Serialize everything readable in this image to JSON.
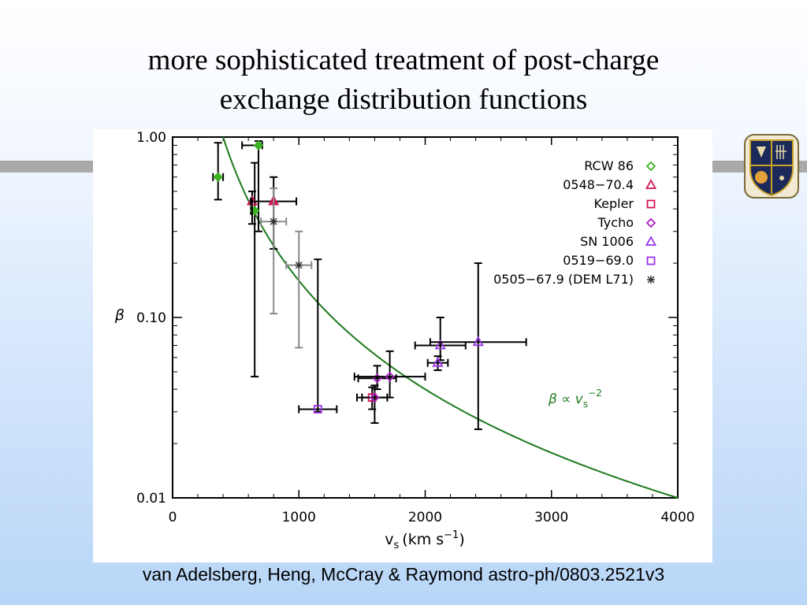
{
  "slide": {
    "title_line1": "more sophisticated treatment of post-charge",
    "title_line2": "exchange distribution functions",
    "citation": "van Adelsberg, Heng, McCray & Raymond astro-ph/0803.2521v3"
  },
  "chart_data": {
    "type": "scatter",
    "title": "",
    "xlabel_main": "v",
    "xlabel_sub": "s",
    "xlabel_units": "(km s",
    "xlabel_exp": "−1",
    "xlabel_close": ")",
    "ylabel": "β",
    "xlim": [
      0,
      4000
    ],
    "ylim": [
      0.01,
      1.0
    ],
    "y_scale": "log",
    "x_ticks": [
      0,
      1000,
      2000,
      3000,
      4000
    ],
    "x_tick_labels": [
      "0",
      "1000",
      "2000",
      "3000",
      "4000"
    ],
    "y_ticks": [
      0.01,
      0.1,
      1.0
    ],
    "y_tick_labels": [
      "0.01",
      "0.10",
      "1.00"
    ],
    "legend_position": "top-right",
    "fit_curve": {
      "label": "β ∝ v",
      "label_sub": "s",
      "label_exp": "−2",
      "color": "#1e7a1e",
      "x_range": [
        400,
        4000
      ],
      "anchor_x": 4000,
      "anchor_y": 0.01,
      "exponent": -2
    },
    "series": [
      {
        "name": "RCW 86",
        "marker": "diamond",
        "color": "#3cb324",
        "points": [
          {
            "x": 360,
            "y": 0.6,
            "xerr": [
              40,
              40
            ],
            "yerr": [
              0.45,
              0.93
            ],
            "filled": true
          },
          {
            "x": 680,
            "y": 0.9,
            "xerr": [
              130,
              30
            ],
            "yerr": [
              0.3,
              0.95
            ],
            "filled": true
          },
          {
            "x": 650,
            "y": 0.39,
            "xerr": [
              30,
              30
            ],
            "yerr": [
              0.047,
              0.72
            ],
            "filled": true
          }
        ]
      },
      {
        "name": "0548−70.4",
        "marker": "triangle",
        "color": "#d4145a",
        "points": [
          {
            "x": 630,
            "y": 0.44,
            "xerr": [
              0,
              0
            ],
            "yerr": [
              0.33,
              0.5
            ],
            "filled": false
          },
          {
            "x": 800,
            "y": 0.44,
            "xerr": [
              180,
              180
            ],
            "yerr": [
              0.24,
              0.6
            ],
            "filled": true
          }
        ]
      },
      {
        "name": "Kepler",
        "marker": "square",
        "color": "#d4145a",
        "points": [
          {
            "x": 1580,
            "y": 0.036,
            "xerr": [
              120,
              120
            ],
            "yerr": [
              0.031,
              0.041
            ],
            "filled": false
          }
        ]
      },
      {
        "name": "Tycho",
        "marker": "diamond",
        "color": "#b020c8",
        "points": [
          {
            "x": 1620,
            "y": 0.046,
            "xerr": [
              150,
              150
            ],
            "yerr": [
              0.04,
              0.054
            ],
            "filled": false
          },
          {
            "x": 1720,
            "y": 0.047,
            "xerr": [
              280,
              280
            ],
            "yerr": [
              0.036,
              0.065
            ],
            "filled": false
          },
          {
            "x": 1600,
            "y": 0.036,
            "xerr": [
              100,
              100
            ],
            "yerr": [
              0.026,
              0.042
            ],
            "filled": false
          }
        ]
      },
      {
        "name": "SN 1006",
        "marker": "triangle",
        "color": "#9a34e8",
        "points": [
          {
            "x": 2120,
            "y": 0.07,
            "xerr": [
              200,
              200
            ],
            "yerr": [
              0.058,
              0.1
            ],
            "filled": false
          },
          {
            "x": 2420,
            "y": 0.073,
            "xerr": [
              380,
              380
            ],
            "yerr": [
              0.024,
              0.2
            ],
            "filled": false
          },
          {
            "x": 2100,
            "y": 0.056,
            "xerr": [
              80,
              80
            ],
            "yerr": [
              0.051,
              0.061
            ],
            "filled": false
          }
        ]
      },
      {
        "name": "0519−69.0",
        "marker": "square",
        "color": "#9a34e8",
        "points": [
          {
            "x": 1150,
            "y": 0.031,
            "xerr": [
              150,
              150
            ],
            "yerr": [
              0.03,
              0.21
            ],
            "filled": false
          }
        ]
      },
      {
        "name": "0505−67.9 (DEM L71)",
        "marker": "asterisk",
        "color": "#303030",
        "points": [
          {
            "x": 800,
            "y": 0.34,
            "xerr": [
              100,
              100
            ],
            "yerr": [
              0.105,
              0.52
            ],
            "filled": false
          },
          {
            "x": 1000,
            "y": 0.195,
            "xerr": [
              100,
              100
            ],
            "yerr": [
              0.068,
              0.3
            ],
            "filled": false
          }
        ]
      }
    ]
  }
}
